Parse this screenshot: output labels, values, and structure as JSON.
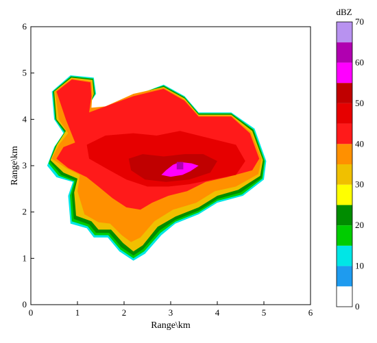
{
  "chart_data": {
    "type": "heatmap",
    "xlabel": "Range\\km",
    "ylabel": "Range\\km",
    "xlim": [
      0,
      6
    ],
    "ylim": [
      0,
      6
    ],
    "xticks": [
      "0",
      "1",
      "2",
      "3",
      "4",
      "5",
      "6"
    ],
    "yticks": [
      "0",
      "1",
      "2",
      "3",
      "4",
      "5",
      "6"
    ],
    "colorbar": {
      "unit": "dBZ",
      "ticks": [
        "0",
        "10",
        "20",
        "30",
        "40",
        "50",
        "60",
        "70"
      ],
      "levels": [
        {
          "from": 0,
          "to": 5,
          "color": "#ffffff"
        },
        {
          "from": 5,
          "to": 10,
          "color": "#1e9bef"
        },
        {
          "from": 10,
          "to": 15,
          "color": "#00e6e6"
        },
        {
          "from": 15,
          "to": 20,
          "color": "#00cc00"
        },
        {
          "from": 20,
          "to": 25,
          "color": "#008c00"
        },
        {
          "from": 25,
          "to": 30,
          "color": "#ffff00"
        },
        {
          "from": 30,
          "to": 35,
          "color": "#f0c000"
        },
        {
          "from": 35,
          "to": 40,
          "color": "#ff9000"
        },
        {
          "from": 40,
          "to": 45,
          "color": "#ff1a1a"
        },
        {
          "from": 45,
          "to": 50,
          "color": "#e60000"
        },
        {
          "from": 50,
          "to": 55,
          "color": "#c00000"
        },
        {
          "from": 55,
          "to": 60,
          "color": "#ff00ff"
        },
        {
          "from": 60,
          "to": 65,
          "color": "#b000b0"
        },
        {
          "from": 65,
          "to": 70,
          "color": "#b892f0"
        }
      ]
    },
    "echo_regions": [
      {
        "dbz": 10,
        "points": [
          [
            0.35,
            3.0
          ],
          [
            0.5,
            3.4
          ],
          [
            0.7,
            3.7
          ],
          [
            0.5,
            4.0
          ],
          [
            0.45,
            4.6
          ],
          [
            0.85,
            4.95
          ],
          [
            1.35,
            4.9
          ],
          [
            1.4,
            4.55
          ],
          [
            1.2,
            4.25
          ],
          [
            1.6,
            4.2
          ],
          [
            2.2,
            4.5
          ],
          [
            2.85,
            4.75
          ],
          [
            3.3,
            4.5
          ],
          [
            3.6,
            4.15
          ],
          [
            4.3,
            4.15
          ],
          [
            4.8,
            3.8
          ],
          [
            5.05,
            3.1
          ],
          [
            5.0,
            2.7
          ],
          [
            4.55,
            2.35
          ],
          [
            4.0,
            2.2
          ],
          [
            3.6,
            1.95
          ],
          [
            3.1,
            1.75
          ],
          [
            2.8,
            1.5
          ],
          [
            2.45,
            1.1
          ],
          [
            2.2,
            0.95
          ],
          [
            1.9,
            1.15
          ],
          [
            1.65,
            1.45
          ],
          [
            1.35,
            1.45
          ],
          [
            1.2,
            1.65
          ],
          [
            0.85,
            1.75
          ],
          [
            0.8,
            2.35
          ],
          [
            0.9,
            2.65
          ],
          [
            0.55,
            2.75
          ]
        ]
      },
      {
        "dbz": 15,
        "points": [
          [
            0.38,
            3.05
          ],
          [
            0.52,
            3.42
          ],
          [
            0.72,
            3.72
          ],
          [
            0.52,
            4.0
          ],
          [
            0.47,
            4.6
          ],
          [
            0.86,
            4.93
          ],
          [
            1.34,
            4.88
          ],
          [
            1.38,
            4.55
          ],
          [
            1.22,
            4.25
          ],
          [
            1.6,
            4.22
          ],
          [
            2.2,
            4.52
          ],
          [
            2.85,
            4.73
          ],
          [
            3.3,
            4.48
          ],
          [
            3.6,
            4.13
          ],
          [
            4.3,
            4.13
          ],
          [
            4.78,
            3.78
          ],
          [
            5.02,
            3.1
          ],
          [
            4.97,
            2.72
          ],
          [
            4.53,
            2.38
          ],
          [
            4.0,
            2.24
          ],
          [
            3.6,
            1.99
          ],
          [
            3.1,
            1.79
          ],
          [
            2.78,
            1.55
          ],
          [
            2.43,
            1.15
          ],
          [
            2.2,
            1.0
          ],
          [
            1.92,
            1.19
          ],
          [
            1.66,
            1.5
          ],
          [
            1.37,
            1.5
          ],
          [
            1.22,
            1.69
          ],
          [
            0.88,
            1.8
          ],
          [
            0.84,
            2.36
          ],
          [
            0.93,
            2.66
          ],
          [
            0.6,
            2.78
          ]
        ]
      },
      {
        "dbz": 20,
        "points": [
          [
            0.4,
            3.1
          ],
          [
            0.54,
            3.43
          ],
          [
            0.73,
            3.73
          ],
          [
            0.53,
            4.0
          ],
          [
            0.48,
            4.6
          ],
          [
            0.86,
            4.92
          ],
          [
            1.33,
            4.87
          ],
          [
            1.37,
            4.55
          ],
          [
            1.23,
            4.25
          ],
          [
            1.6,
            4.23
          ],
          [
            2.2,
            4.52
          ],
          [
            2.85,
            4.72
          ],
          [
            3.3,
            4.47
          ],
          [
            3.6,
            4.12
          ],
          [
            4.3,
            4.12
          ],
          [
            4.77,
            3.77
          ],
          [
            5.0,
            3.1
          ],
          [
            4.95,
            2.74
          ],
          [
            4.5,
            2.42
          ],
          [
            4.0,
            2.28
          ],
          [
            3.6,
            2.03
          ],
          [
            3.1,
            1.83
          ],
          [
            2.76,
            1.6
          ],
          [
            2.41,
            1.2
          ],
          [
            2.2,
            1.06
          ],
          [
            1.94,
            1.24
          ],
          [
            1.68,
            1.55
          ],
          [
            1.4,
            1.55
          ],
          [
            1.25,
            1.73
          ],
          [
            0.92,
            1.85
          ],
          [
            0.88,
            2.38
          ],
          [
            0.96,
            2.68
          ],
          [
            0.65,
            2.8
          ]
        ]
      },
      {
        "dbz": 30,
        "points": [
          [
            0.42,
            3.12
          ],
          [
            0.56,
            3.45
          ],
          [
            0.75,
            3.75
          ],
          [
            0.55,
            4.0
          ],
          [
            0.5,
            4.6
          ],
          [
            0.87,
            4.9
          ],
          [
            1.32,
            4.85
          ],
          [
            1.35,
            4.55
          ],
          [
            1.25,
            4.25
          ],
          [
            1.6,
            4.25
          ],
          [
            2.2,
            4.55
          ],
          [
            2.85,
            4.7
          ],
          [
            3.3,
            4.45
          ],
          [
            3.6,
            4.1
          ],
          [
            4.3,
            4.1
          ],
          [
            4.75,
            3.75
          ],
          [
            4.98,
            3.12
          ],
          [
            4.92,
            2.78
          ],
          [
            4.45,
            2.48
          ],
          [
            4.0,
            2.35
          ],
          [
            3.6,
            2.1
          ],
          [
            3.1,
            1.9
          ],
          [
            2.72,
            1.68
          ],
          [
            2.4,
            1.28
          ],
          [
            2.2,
            1.15
          ],
          [
            1.98,
            1.33
          ],
          [
            1.72,
            1.62
          ],
          [
            1.45,
            1.62
          ],
          [
            1.3,
            1.8
          ],
          [
            0.97,
            1.92
          ],
          [
            0.93,
            2.42
          ],
          [
            1.0,
            2.72
          ],
          [
            0.7,
            2.85
          ]
        ]
      },
      {
        "dbz": 35,
        "points": [
          [
            0.45,
            3.15
          ],
          [
            0.6,
            3.45
          ],
          [
            0.8,
            3.7
          ],
          [
            0.6,
            4.0
          ],
          [
            0.52,
            4.6
          ],
          [
            0.88,
            4.88
          ],
          [
            1.3,
            4.82
          ],
          [
            1.32,
            4.55
          ],
          [
            1.3,
            4.25
          ],
          [
            1.6,
            4.28
          ],
          [
            2.2,
            4.55
          ],
          [
            2.85,
            4.68
          ],
          [
            3.3,
            4.42
          ],
          [
            3.6,
            4.08
          ],
          [
            4.3,
            4.08
          ],
          [
            4.72,
            3.72
          ],
          [
            4.95,
            3.15
          ],
          [
            4.88,
            2.82
          ],
          [
            4.4,
            2.55
          ],
          [
            3.95,
            2.45
          ],
          [
            3.55,
            2.2
          ],
          [
            3.05,
            2.05
          ],
          [
            2.65,
            1.8
          ],
          [
            2.35,
            1.45
          ],
          [
            2.15,
            1.35
          ],
          [
            1.95,
            1.5
          ],
          [
            1.7,
            1.75
          ],
          [
            1.45,
            1.78
          ],
          [
            1.15,
            1.95
          ],
          [
            1.0,
            2.45
          ],
          [
            1.05,
            2.8
          ],
          [
            0.75,
            2.95
          ]
        ]
      },
      {
        "dbz": 40,
        "points": [
          [
            0.55,
            3.15
          ],
          [
            0.7,
            3.4
          ],
          [
            0.95,
            3.5
          ],
          [
            0.75,
            4.0
          ],
          [
            0.55,
            4.6
          ],
          [
            0.88,
            4.86
          ],
          [
            1.28,
            4.8
          ],
          [
            1.3,
            4.5
          ],
          [
            1.25,
            4.15
          ],
          [
            1.6,
            4.28
          ],
          [
            2.2,
            4.5
          ],
          [
            2.85,
            4.66
          ],
          [
            3.3,
            4.4
          ],
          [
            3.6,
            4.06
          ],
          [
            4.3,
            4.06
          ],
          [
            4.7,
            3.7
          ],
          [
            4.9,
            3.15
          ],
          [
            4.75,
            2.9
          ],
          [
            4.2,
            2.75
          ],
          [
            3.75,
            2.65
          ],
          [
            3.35,
            2.45
          ],
          [
            2.95,
            2.35
          ],
          [
            2.6,
            2.2
          ],
          [
            2.35,
            2.05
          ],
          [
            2.05,
            2.1
          ],
          [
            1.75,
            2.3
          ],
          [
            1.45,
            2.55
          ],
          [
            1.2,
            2.75
          ],
          [
            0.8,
            2.95
          ]
        ]
      },
      {
        "dbz": 45,
        "points": [
          [
            1.2,
            3.45
          ],
          [
            1.6,
            3.65
          ],
          [
            2.2,
            3.7
          ],
          [
            2.7,
            3.65
          ],
          [
            3.2,
            3.75
          ],
          [
            3.8,
            3.6
          ],
          [
            4.4,
            3.45
          ],
          [
            4.6,
            3.1
          ],
          [
            4.4,
            2.8
          ],
          [
            3.9,
            2.7
          ],
          [
            3.4,
            2.6
          ],
          [
            2.95,
            2.55
          ],
          [
            2.5,
            2.55
          ],
          [
            2.05,
            2.7
          ],
          [
            1.6,
            2.95
          ],
          [
            1.25,
            3.15
          ]
        ]
      },
      {
        "dbz": 50,
        "points": [
          [
            2.1,
            3.15
          ],
          [
            2.4,
            3.25
          ],
          [
            2.85,
            3.2
          ],
          [
            3.3,
            3.25
          ],
          [
            3.7,
            3.25
          ],
          [
            4.0,
            3.1
          ],
          [
            3.85,
            2.85
          ],
          [
            3.4,
            2.7
          ],
          [
            2.9,
            2.65
          ],
          [
            2.45,
            2.7
          ],
          [
            2.15,
            2.9
          ]
        ]
      },
      {
        "dbz": 55,
        "points": [
          [
            2.8,
            2.8
          ],
          [
            2.9,
            2.9
          ],
          [
            3.05,
            3.02
          ],
          [
            3.2,
            3.08
          ],
          [
            3.45,
            3.05
          ],
          [
            3.6,
            3.0
          ],
          [
            3.42,
            2.88
          ],
          [
            3.25,
            2.8
          ],
          [
            3.0,
            2.76
          ]
        ]
      },
      {
        "dbz": 60,
        "points": [
          [
            3.13,
            3.08
          ],
          [
            3.27,
            3.08
          ],
          [
            3.27,
            2.92
          ],
          [
            3.13,
            2.92
          ]
        ]
      }
    ]
  }
}
